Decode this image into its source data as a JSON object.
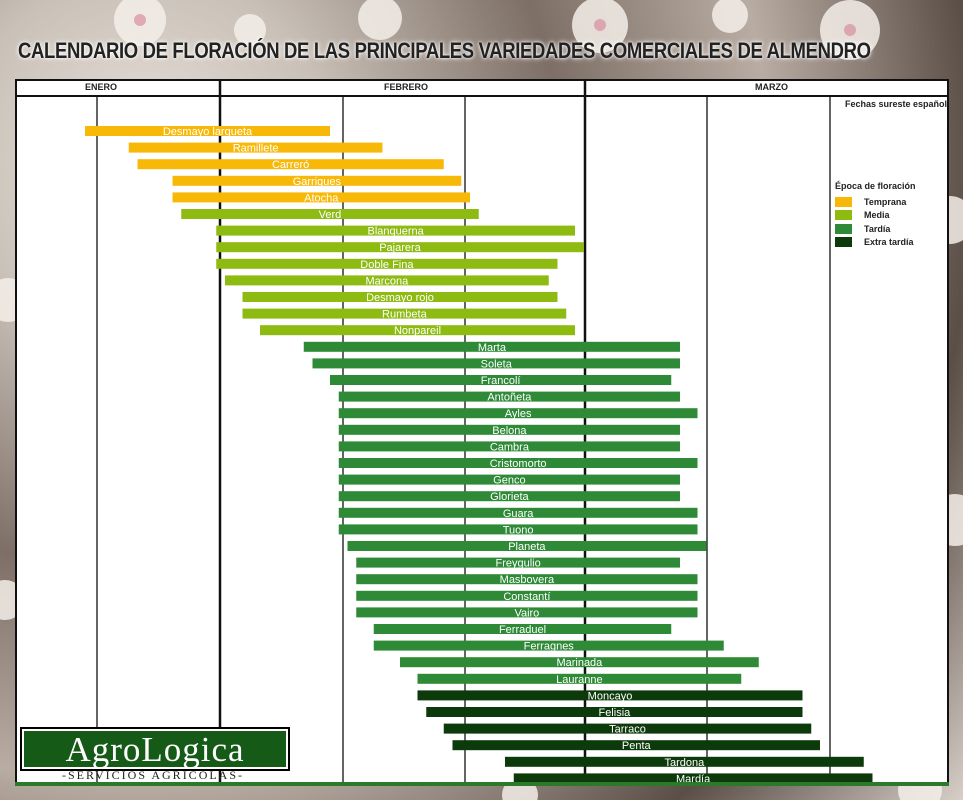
{
  "title": "CALENDARIO DE FLORACIÓN DE LAS PRINCIPALES VARIEDADES COMERCIALES DE ALMENDRO",
  "logo": {
    "text": "AgroLogica",
    "subtitle": "-SERVICIOS AGRICOLAS-"
  },
  "chart_data": {
    "type": "bar",
    "orientation": "horizontal-range",
    "title": "CALENDARIO DE FLORACIÓN DE LAS PRINCIPALES VARIEDADES COMERCIALES DE ALMENDRO",
    "subtitle": "Fechas sureste español",
    "x_axis": {
      "unit": "semana",
      "months": [
        "ENERO",
        "FEBRERO",
        "MARZO"
      ],
      "range": [
        0,
        14
      ],
      "weeks_per_month": [
        4,
        5,
        5
      ]
    },
    "legend": {
      "title": "Época de floración",
      "position": "right",
      "items": [
        {
          "key": "temprana",
          "label": "Temprana",
          "color": "#f8b808"
        },
        {
          "key": "media",
          "label": "Media",
          "color": "#8dbb12"
        },
        {
          "key": "tardia",
          "label": "Tardía",
          "color": "#2e8a36"
        },
        {
          "key": "extra",
          "label": "Extra tardía",
          "color": "#0d3a0b"
        }
      ]
    },
    "series": [
      {
        "name": "Desmayo largueta",
        "start": 0,
        "end": 2.8,
        "group": "temprana"
      },
      {
        "name": "Ramillete",
        "start": 0.5,
        "end": 3.4,
        "group": "temprana"
      },
      {
        "name": "Carreró",
        "start": 0.6,
        "end": 4.1,
        "group": "temprana"
      },
      {
        "name": "Garrigues",
        "start": 1.0,
        "end": 4.3,
        "group": "temprana"
      },
      {
        "name": "Atocha",
        "start": 1.0,
        "end": 4.4,
        "group": "temprana"
      },
      {
        "name": "Verd",
        "start": 1.1,
        "end": 4.5,
        "group": "media"
      },
      {
        "name": "Blanquerna",
        "start": 1.5,
        "end": 5.6,
        "group": "media"
      },
      {
        "name": "Pajarera",
        "start": 1.5,
        "end": 5.7,
        "group": "media"
      },
      {
        "name": "Doble Fina",
        "start": 1.5,
        "end": 5.4,
        "group": "media"
      },
      {
        "name": "Marcona",
        "start": 1.6,
        "end": 5.3,
        "group": "media"
      },
      {
        "name": "Desmayo rojo",
        "start": 1.8,
        "end": 5.4,
        "group": "media"
      },
      {
        "name": "Rumbeta",
        "start": 1.8,
        "end": 5.5,
        "group": "media"
      },
      {
        "name": "Nonpareil",
        "start": 2.0,
        "end": 5.6,
        "group": "media"
      },
      {
        "name": "Marta",
        "start": 2.5,
        "end": 6.8,
        "group": "tardia"
      },
      {
        "name": "Soleta",
        "start": 2.6,
        "end": 6.8,
        "group": "tardia"
      },
      {
        "name": "Francolí",
        "start": 2.8,
        "end": 6.7,
        "group": "tardia"
      },
      {
        "name": "Antoñeta",
        "start": 2.9,
        "end": 6.8,
        "group": "tardia"
      },
      {
        "name": "Ayles",
        "start": 2.9,
        "end": 7.0,
        "group": "tardia"
      },
      {
        "name": "Belona",
        "start": 2.9,
        "end": 6.8,
        "group": "tardia"
      },
      {
        "name": "Cambra",
        "start": 2.9,
        "end": 6.8,
        "group": "tardia"
      },
      {
        "name": "Cristomorto",
        "start": 2.9,
        "end": 7.0,
        "group": "tardia"
      },
      {
        "name": "Genco",
        "start": 2.9,
        "end": 6.8,
        "group": "tardia"
      },
      {
        "name": "Glorieta",
        "start": 2.9,
        "end": 6.8,
        "group": "tardia"
      },
      {
        "name": "Guara",
        "start": 2.9,
        "end": 7.0,
        "group": "tardia"
      },
      {
        "name": "Tuono",
        "start": 2.9,
        "end": 7.0,
        "group": "tardia"
      },
      {
        "name": "Planeta",
        "start": 3.0,
        "end": 7.1,
        "group": "tardia"
      },
      {
        "name": "Freygulio",
        "start": 3.1,
        "end": 6.8,
        "group": "tardia"
      },
      {
        "name": "Masbovera",
        "start": 3.1,
        "end": 7.0,
        "group": "tardia"
      },
      {
        "name": "Constantí",
        "start": 3.1,
        "end": 7.0,
        "group": "tardia"
      },
      {
        "name": "Vairo",
        "start": 3.1,
        "end": 7.0,
        "group": "tardia"
      },
      {
        "name": "Ferraduel",
        "start": 3.3,
        "end": 6.7,
        "group": "tardia"
      },
      {
        "name": "Ferragnes",
        "start": 3.3,
        "end": 7.3,
        "group": "tardia"
      },
      {
        "name": "Marinada",
        "start": 3.6,
        "end": 7.7,
        "group": "tardia"
      },
      {
        "name": "Lauranne",
        "start": 3.8,
        "end": 7.5,
        "group": "tardia"
      },
      {
        "name": "Moncayo",
        "start": 3.8,
        "end": 8.2,
        "group": "extra"
      },
      {
        "name": "Felisia",
        "start": 3.9,
        "end": 8.2,
        "group": "extra"
      },
      {
        "name": "Tarraco",
        "start": 4.1,
        "end": 8.3,
        "group": "extra"
      },
      {
        "name": "Penta",
        "start": 4.2,
        "end": 8.4,
        "group": "extra"
      },
      {
        "name": "Tardona",
        "start": 4.8,
        "end": 8.9,
        "group": "extra"
      },
      {
        "name": "Mardía",
        "start": 4.9,
        "end": 9.0,
        "group": "extra"
      }
    ]
  }
}
